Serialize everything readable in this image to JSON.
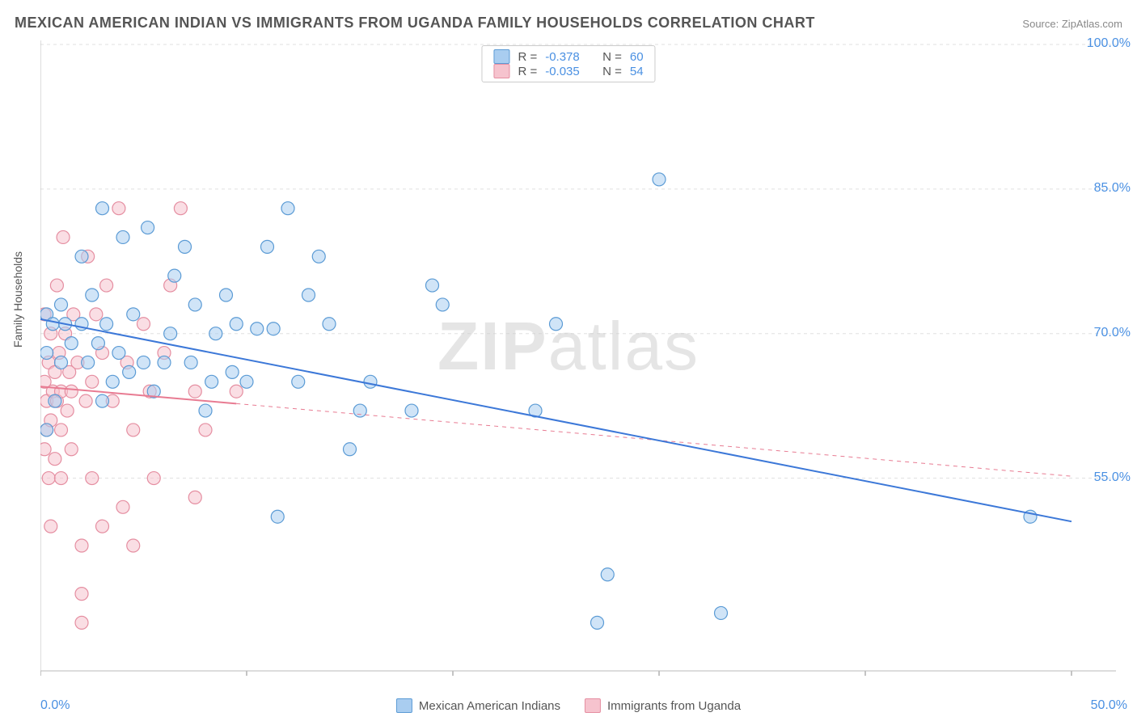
{
  "title": "MEXICAN AMERICAN INDIAN VS IMMIGRANTS FROM UGANDA FAMILY HOUSEHOLDS CORRELATION CHART",
  "source_label": "Source:",
  "source_site": "ZipAtlas.com",
  "ylabel": "Family Households",
  "watermark_bold": "ZIP",
  "watermark_light": "atlas",
  "chart": {
    "type": "scatter",
    "background_color": "#ffffff",
    "grid_color": "#e0e0e0",
    "axis_label_color": "#4a90e2",
    "xlim": [
      0,
      50
    ],
    "x_ticks": [
      0,
      10,
      20,
      30,
      40,
      50
    ],
    "x_tick_labels": {
      "min": "0.0%",
      "max": "50.0%"
    },
    "ylim": [
      35,
      100
    ],
    "y_ticks": [
      55,
      70,
      85,
      100
    ],
    "y_tick_labels": [
      "55.0%",
      "70.0%",
      "85.0%",
      "100.0%"
    ],
    "marker_radius": 8,
    "marker_opacity": 0.55,
    "line_width": 2,
    "series": {
      "blue": {
        "name": "Mexican American Indians",
        "fill": "#a9cdf0",
        "stroke": "#5b9bd5",
        "line_color": "#3c78d8",
        "R": "-0.378",
        "N": "60",
        "trend": {
          "x1": 0,
          "y1": 71.5,
          "x2": 50,
          "y2": 50.5,
          "solid_to_x": 50
        },
        "points": [
          [
            0.3,
            68
          ],
          [
            0.3,
            60
          ],
          [
            0.3,
            72
          ],
          [
            0.6,
            71
          ],
          [
            0.7,
            63
          ],
          [
            1,
            67
          ],
          [
            1,
            73
          ],
          [
            1.2,
            71
          ],
          [
            1.5,
            69
          ],
          [
            2,
            78
          ],
          [
            2,
            71
          ],
          [
            2.3,
            67
          ],
          [
            2.5,
            74
          ],
          [
            2.8,
            69
          ],
          [
            3,
            83
          ],
          [
            3,
            63
          ],
          [
            3.2,
            71
          ],
          [
            3.5,
            65
          ],
          [
            3.8,
            68
          ],
          [
            4,
            80
          ],
          [
            4.3,
            66
          ],
          [
            4.5,
            72
          ],
          [
            5,
            67
          ],
          [
            5.2,
            81
          ],
          [
            5.5,
            64
          ],
          [
            6,
            67
          ],
          [
            6.3,
            70
          ],
          [
            6.5,
            76
          ],
          [
            7,
            79
          ],
          [
            7.3,
            67
          ],
          [
            7.5,
            73
          ],
          [
            8,
            62
          ],
          [
            8.3,
            65
          ],
          [
            8.5,
            70
          ],
          [
            9,
            74
          ],
          [
            9.3,
            66
          ],
          [
            9.5,
            71
          ],
          [
            10,
            65
          ],
          [
            10.5,
            70.5
          ],
          [
            11,
            79
          ],
          [
            11.3,
            70.5
          ],
          [
            11.5,
            51
          ],
          [
            12,
            83
          ],
          [
            12.5,
            65
          ],
          [
            13,
            74
          ],
          [
            13.5,
            78
          ],
          [
            14,
            71
          ],
          [
            15,
            58
          ],
          [
            15.5,
            62
          ],
          [
            16,
            65
          ],
          [
            18,
            62
          ],
          [
            19,
            75
          ],
          [
            19.5,
            73
          ],
          [
            24,
            62
          ],
          [
            25,
            71
          ],
          [
            27,
            40
          ],
          [
            27.5,
            45
          ],
          [
            30,
            86
          ],
          [
            33,
            41
          ],
          [
            48,
            51
          ]
        ]
      },
      "pink": {
        "name": "Immigrants from Uganda",
        "fill": "#f6c3ce",
        "stroke": "#e58ea1",
        "line_color": "#e87b92",
        "R": "-0.035",
        "N": "54",
        "trend": {
          "x1": 0,
          "y1": 64.5,
          "x2": 50,
          "y2": 55.2,
          "solid_to_x": 9.5
        },
        "points": [
          [
            0.2,
            65
          ],
          [
            0.2,
            58
          ],
          [
            0.2,
            72
          ],
          [
            0.3,
            63
          ],
          [
            0.3,
            60
          ],
          [
            0.4,
            67
          ],
          [
            0.4,
            55
          ],
          [
            0.5,
            70
          ],
          [
            0.5,
            61
          ],
          [
            0.5,
            50
          ],
          [
            0.6,
            64
          ],
          [
            0.7,
            66
          ],
          [
            0.7,
            57
          ],
          [
            0.8,
            75
          ],
          [
            0.8,
            63
          ],
          [
            0.9,
            68
          ],
          [
            1,
            64
          ],
          [
            1,
            60
          ],
          [
            1,
            55
          ],
          [
            1.1,
            80
          ],
          [
            1.2,
            70
          ],
          [
            1.3,
            62
          ],
          [
            1.4,
            66
          ],
          [
            1.5,
            58
          ],
          [
            1.5,
            64
          ],
          [
            1.6,
            72
          ],
          [
            1.8,
            67
          ],
          [
            2,
            43
          ],
          [
            2,
            48
          ],
          [
            2,
            40
          ],
          [
            2.2,
            63
          ],
          [
            2.3,
            78
          ],
          [
            2.5,
            65
          ],
          [
            2.5,
            55
          ],
          [
            2.7,
            72
          ],
          [
            3,
            68
          ],
          [
            3,
            50
          ],
          [
            3.2,
            75
          ],
          [
            3.5,
            63
          ],
          [
            3.8,
            83
          ],
          [
            4,
            52
          ],
          [
            4.2,
            67
          ],
          [
            4.5,
            60
          ],
          [
            4.5,
            48
          ],
          [
            5,
            71
          ],
          [
            5.3,
            64
          ],
          [
            5.5,
            55
          ],
          [
            6,
            68
          ],
          [
            6.3,
            75
          ],
          [
            6.8,
            83
          ],
          [
            7.5,
            64
          ],
          [
            7.5,
            53
          ],
          [
            8,
            60
          ],
          [
            9.5,
            64
          ]
        ]
      }
    },
    "legend_labels": {
      "R": "R =",
      "N": "N ="
    }
  }
}
